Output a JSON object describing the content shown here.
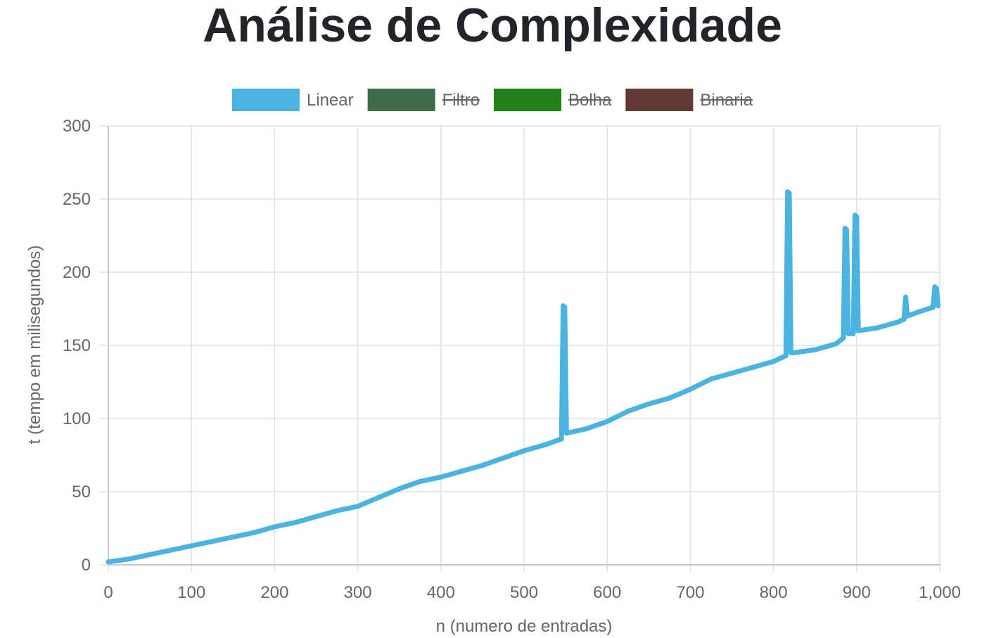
{
  "page": {
    "title": "Análise de Complexidade"
  },
  "chart_data": {
    "type": "line",
    "title": "Análise de Complexidade",
    "xlabel": "n (numero de entradas)",
    "ylabel": "t (tempo em milisegundos)",
    "xlim": [
      0,
      1000
    ],
    "ylim": [
      0,
      300
    ],
    "x_ticks": [
      "0",
      "100",
      "200",
      "300",
      "400",
      "500",
      "600",
      "700",
      "800",
      "900",
      "1,000"
    ],
    "y_ticks": [
      "0",
      "50",
      "100",
      "150",
      "200",
      "250",
      "300"
    ],
    "grid": true,
    "legend_position": "top",
    "legend": [
      {
        "name": "Linear",
        "color": "#4ab3e0",
        "hidden": false
      },
      {
        "name": "Filtro",
        "color": "#3e6b4a",
        "hidden": true
      },
      {
        "name": "Bolha",
        "color": "#238019",
        "hidden": true
      },
      {
        "name": "Binaria",
        "color": "#613832",
        "hidden": true
      }
    ],
    "series": [
      {
        "name": "Linear",
        "color": "#4ab3e0",
        "x": [
          0,
          25,
          50,
          75,
          100,
          125,
          150,
          175,
          200,
          225,
          250,
          275,
          300,
          325,
          350,
          375,
          400,
          425,
          450,
          475,
          500,
          525,
          545,
          547,
          549,
          551,
          575,
          600,
          625,
          650,
          675,
          700,
          725,
          750,
          775,
          800,
          815,
          817,
          819,
          821,
          825,
          850,
          875,
          884,
          886,
          888,
          890,
          896,
          898,
          900,
          902,
          925,
          950,
          957,
          959,
          961,
          975,
          992,
          994,
          996,
          998
        ],
        "values": [
          2,
          4,
          7,
          10,
          13,
          16,
          19,
          22,
          26,
          29,
          33,
          37,
          40,
          46,
          52,
          57,
          60,
          64,
          68,
          73,
          78,
          82,
          86,
          177,
          176,
          90,
          93,
          98,
          105,
          110,
          114,
          120,
          127,
          131,
          135,
          139,
          143,
          255,
          254,
          145,
          145,
          147,
          151,
          155,
          230,
          229,
          158,
          158,
          239,
          238,
          160,
          162,
          166,
          168,
          183,
          170,
          173,
          176,
          190,
          189,
          177
        ]
      }
    ]
  }
}
